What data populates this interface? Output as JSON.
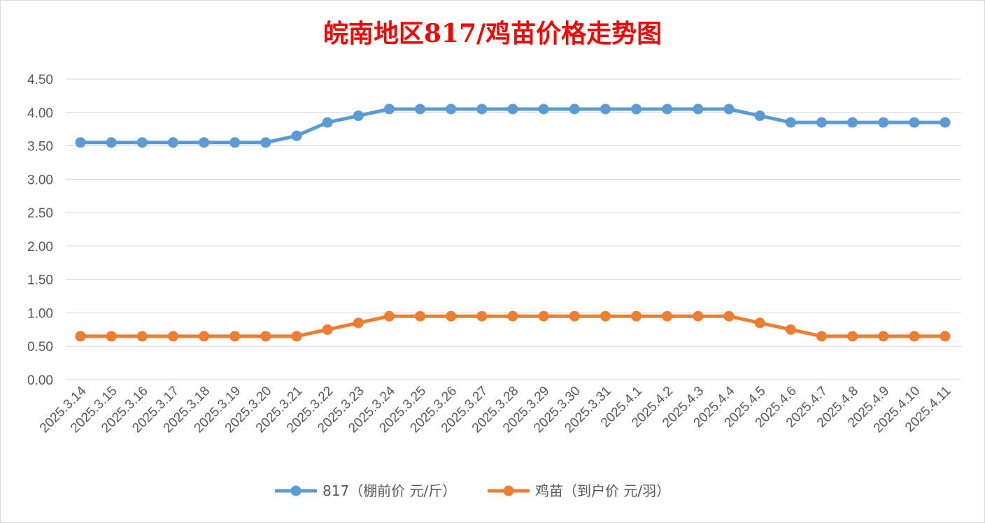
{
  "chart_data": {
    "type": "line",
    "title": "皖南地区817/鸡苗价格走势图",
    "categories": [
      "2025.3.14",
      "2025.3.15",
      "2025.3.16",
      "2025.3.17",
      "2025.3.18",
      "2025.3.19",
      "2025.3.20",
      "2025.3.21",
      "2025.3.22",
      "2025.3.23",
      "2025.3.24",
      "2025.3.25",
      "2025.3.26",
      "2025.3.27",
      "2025.3.28",
      "2025.3.29",
      "2025.3.30",
      "2025.3.31",
      "2025.4.1",
      "2025.4.2",
      "2025.4.3",
      "2025.4.4",
      "2025.4.5",
      "2025.4.6",
      "2025.4.7",
      "2025.4.8",
      "2025.4.9",
      "2025.4.10",
      "2025.4.11"
    ],
    "series": [
      {
        "name": "817（棚前价 元/斤）",
        "color": "#5b9bd5",
        "values": [
          3.55,
          3.55,
          3.55,
          3.55,
          3.55,
          3.55,
          3.55,
          3.65,
          3.85,
          3.95,
          4.05,
          4.05,
          4.05,
          4.05,
          4.05,
          4.05,
          4.05,
          4.05,
          4.05,
          4.05,
          4.05,
          4.05,
          3.95,
          3.85,
          3.85,
          3.85,
          3.85,
          3.85,
          3.85
        ]
      },
      {
        "name": "鸡苗（到户价 元/羽）",
        "color": "#ed7d31",
        "values": [
          0.65,
          0.65,
          0.65,
          0.65,
          0.65,
          0.65,
          0.65,
          0.65,
          0.75,
          0.85,
          0.95,
          0.95,
          0.95,
          0.95,
          0.95,
          0.95,
          0.95,
          0.95,
          0.95,
          0.95,
          0.95,
          0.95,
          0.85,
          0.75,
          0.65,
          0.65,
          0.65,
          0.65,
          0.65
        ]
      }
    ],
    "yticks": [
      "0.00",
      "0.50",
      "1.00",
      "1.50",
      "2.00",
      "2.50",
      "3.00",
      "3.50",
      "4.00",
      "4.50"
    ],
    "ylim": [
      0,
      4.5
    ],
    "xlabel": "",
    "ylabel": "",
    "grid": true,
    "legend": "bottom"
  }
}
